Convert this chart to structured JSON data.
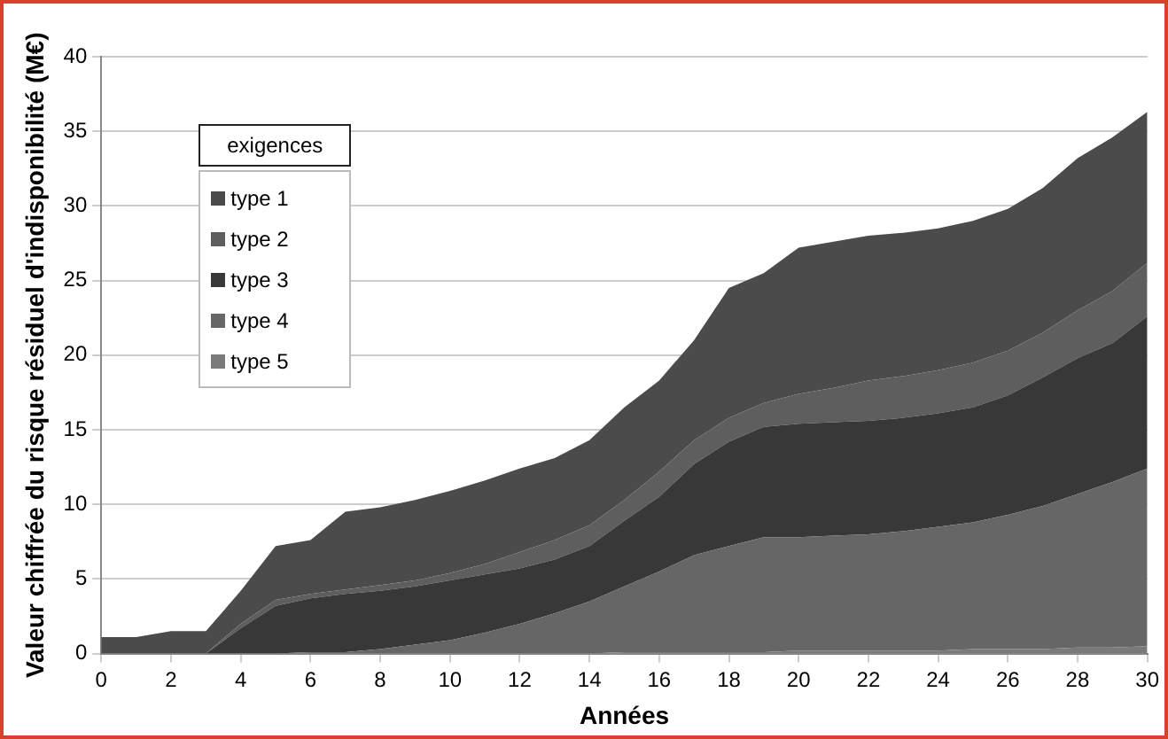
{
  "chart_data": {
    "type": "area",
    "stacked": true,
    "xlabel": "Années",
    "ylabel": "Valeur chiffrée du risque résiduel d'indisponibilité (M€)",
    "legend_title": "exigences",
    "legend": "top left",
    "grid": "y",
    "x": [
      0,
      1,
      2,
      3,
      4,
      5,
      6,
      7,
      8,
      9,
      10,
      11,
      12,
      13,
      14,
      15,
      16,
      17,
      18,
      19,
      20,
      21,
      22,
      23,
      24,
      25,
      26,
      27,
      28,
      29,
      30
    ],
    "xlim": [
      0,
      30
    ],
    "xticks": [
      0,
      2,
      4,
      6,
      8,
      10,
      12,
      14,
      16,
      18,
      20,
      22,
      24,
      26,
      28,
      30
    ],
    "ylim": [
      0,
      40
    ],
    "yticks": [
      0,
      5,
      10,
      15,
      20,
      25,
      30,
      35,
      40
    ],
    "series": [
      {
        "name": "type 5",
        "color": "#7a7a7a",
        "values": [
          0,
          0,
          0,
          0,
          0,
          0,
          0,
          0,
          0,
          0,
          0,
          0,
          0,
          0,
          0,
          0.1,
          0.1,
          0.1,
          0.1,
          0.1,
          0.2,
          0.2,
          0.2,
          0.2,
          0.2,
          0.3,
          0.3,
          0.3,
          0.4,
          0.4,
          0.5
        ]
      },
      {
        "name": "type 4",
        "color": "#666666",
        "values": [
          0,
          0,
          0,
          0,
          0,
          0,
          0.1,
          0.1,
          0.3,
          0.6,
          0.9,
          1.4,
          2,
          2.7,
          3.5,
          4.4,
          5.4,
          6.5,
          7.1,
          7.7,
          7.6,
          7.7,
          7.8,
          8,
          8.3,
          8.5,
          9,
          9.6,
          10.3,
          11.1,
          11.9
        ]
      },
      {
        "name": "type 3",
        "color": "#383838",
        "values": [
          0,
          0,
          0,
          0,
          1.7,
          3.2,
          3.6,
          3.9,
          3.9,
          3.9,
          4.0,
          3.9,
          3.7,
          3.6,
          3.7,
          4.4,
          5.0,
          6.1,
          7.0,
          7.4,
          7.6,
          7.6,
          7.6,
          7.6,
          7.6,
          7.7,
          8.0,
          8.6,
          9.1,
          9.3,
          10.2
        ]
      },
      {
        "name": "type 2",
        "color": "#5e5e5e",
        "values": [
          0,
          0,
          0,
          0,
          0.3,
          0.4,
          0.3,
          0.3,
          0.4,
          0.4,
          0.5,
          0.7,
          1.1,
          1.3,
          1.4,
          1.4,
          1.7,
          1.6,
          1.6,
          1.6,
          2.0,
          2.3,
          2.7,
          2.8,
          2.9,
          3.0,
          3.0,
          3.0,
          3.2,
          3.5,
          3.6
        ]
      },
      {
        "name": "type 1",
        "color": "#4b4b4b",
        "values": [
          1.1,
          1.1,
          1.5,
          1.5,
          2.2,
          3.6,
          3.6,
          5.2,
          5.2,
          5.4,
          5.5,
          5.6,
          5.6,
          5.5,
          5.7,
          6.2,
          6.1,
          6.7,
          8.7,
          8.7,
          9.8,
          9.8,
          9.7,
          9.6,
          9.5,
          9.5,
          9.5,
          9.7,
          10.2,
          10.3,
          10.1
        ]
      }
    ]
  }
}
